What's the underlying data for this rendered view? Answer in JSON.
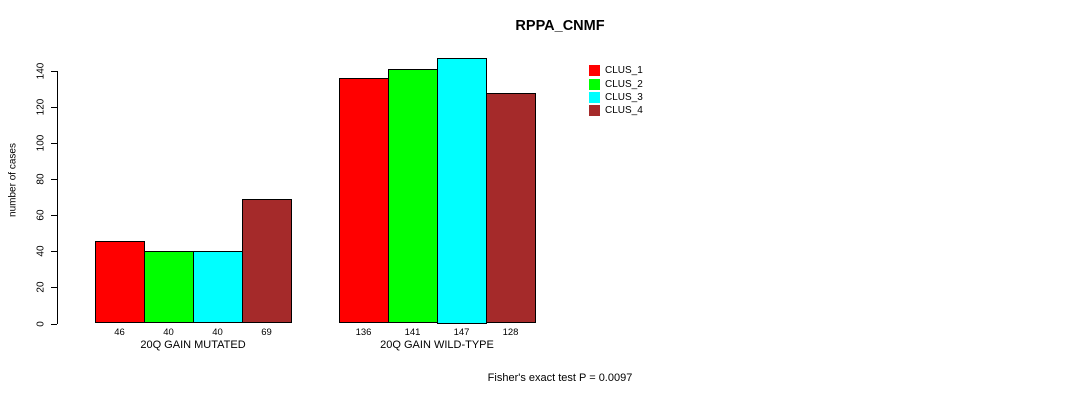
{
  "chart_data": {
    "type": "bar",
    "title": "RPPA_CNMF",
    "ylabel": "number of cases",
    "xlabel": "",
    "ylim": [
      0,
      140
    ],
    "yticks": [
      0,
      20,
      40,
      60,
      80,
      100,
      120,
      140
    ],
    "grid": false,
    "legend_position": "top-right",
    "categories": [
      "20Q GAIN MUTATED",
      "20Q GAIN WILD-TYPE"
    ],
    "series": [
      {
        "name": "CLUS_1",
        "color": "#ff0000",
        "values": [
          46,
          136
        ]
      },
      {
        "name": "CLUS_2",
        "color": "#00ff00",
        "values": [
          40,
          141
        ]
      },
      {
        "name": "CLUS_3",
        "color": "#00ffff",
        "values": [
          40,
          147
        ]
      },
      {
        "name": "CLUS_4",
        "color": "#a52a2a",
        "values": [
          69,
          128
        ]
      }
    ],
    "bar_value_labels": [
      [
        46,
        40,
        40,
        69
      ],
      [
        136,
        141,
        147,
        128
      ]
    ],
    "annotation": "Fisher's exact test P = 0.0097"
  }
}
